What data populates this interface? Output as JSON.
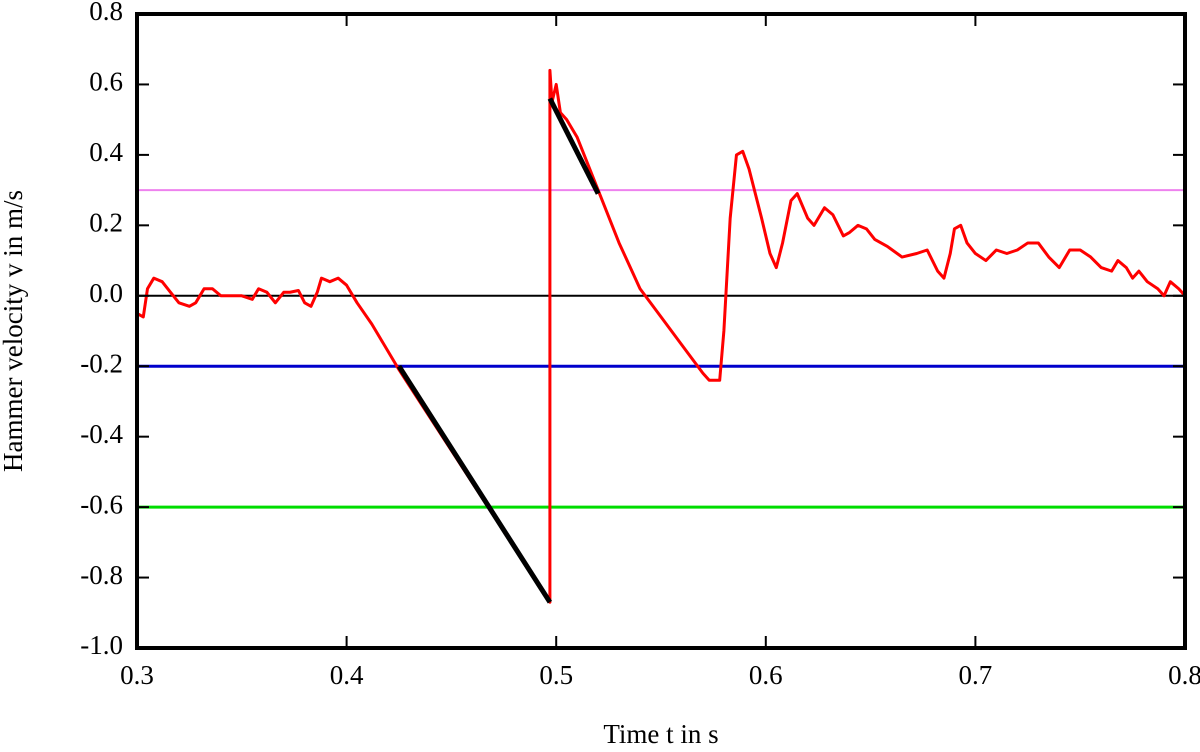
{
  "chart_data": {
    "type": "line",
    "xlabel": "Time t in s",
    "ylabel": "Hammer velocity v in m/s",
    "xlim": [
      0.3,
      0.8
    ],
    "xticks": [
      0.3,
      0.4,
      0.5,
      0.6,
      0.7,
      0.8
    ],
    "ylim": [
      -1.0,
      0.8
    ],
    "yticks": [
      {
        "value": -1.0,
        "label": "-1.0"
      },
      -0.8,
      -0.6,
      -0.4,
      -0.2,
      {
        "value": 0,
        "label": "0.0"
      },
      0.2,
      0.4,
      0.6,
      0.8
    ],
    "series": [
      {
        "color": "#ee82ee",
        "width": 2,
        "x": [
          0.3,
          0.8
        ],
        "values": [
          0.3,
          0.3
        ]
      },
      {
        "color": "#000000",
        "width": 2,
        "x": [
          0.3,
          0.8
        ],
        "values": [
          0,
          0
        ]
      },
      {
        "color": "#0000cc",
        "width": 3,
        "x": [
          0.3,
          0.8
        ],
        "values": [
          -0.2,
          -0.2
        ]
      },
      {
        "color": "#00dd00",
        "width": 3,
        "x": [
          0.3,
          0.8
        ],
        "values": [
          -0.6,
          -0.6
        ]
      },
      {
        "color": "#ff0000",
        "width": 3,
        "x": [
          0.3,
          0.303,
          0.305,
          0.308,
          0.312,
          0.316,
          0.32,
          0.325,
          0.328,
          0.332,
          0.336,
          0.34,
          0.345,
          0.35,
          0.355,
          0.358,
          0.362,
          0.366,
          0.37,
          0.373,
          0.377,
          0.38,
          0.383,
          0.386,
          0.388,
          0.392,
          0.396,
          0.4,
          0.405,
          0.412,
          0.42,
          0.425,
          0.497,
          0.497,
          0.498,
          0.5,
          0.502,
          0.505,
          0.51,
          0.52,
          0.53,
          0.54,
          0.55,
          0.56,
          0.57,
          0.573,
          0.578,
          0.58,
          0.583,
          0.586,
          0.589,
          0.592,
          0.598,
          0.602,
          0.605,
          0.608,
          0.612,
          0.615,
          0.62,
          0.623,
          0.628,
          0.632,
          0.637,
          0.64,
          0.644,
          0.648,
          0.652,
          0.658,
          0.665,
          0.672,
          0.677,
          0.682,
          0.685,
          0.688,
          0.69,
          0.693,
          0.696,
          0.7,
          0.705,
          0.71,
          0.715,
          0.72,
          0.725,
          0.73,
          0.735,
          0.74,
          0.745,
          0.75,
          0.755,
          0.76,
          0.765,
          0.768,
          0.772,
          0.775,
          0.778,
          0.782,
          0.787,
          0.79,
          0.793,
          0.797,
          0.8
        ],
        "values": [
          -0.05,
          -0.06,
          0.02,
          0.05,
          0.04,
          0.01,
          -0.02,
          -0.03,
          -0.02,
          0.02,
          0.02,
          0.0,
          0.0,
          0.0,
          -0.01,
          0.02,
          0.01,
          -0.02,
          0.01,
          0.01,
          0.015,
          -0.02,
          -0.03,
          0.01,
          0.05,
          0.04,
          0.05,
          0.03,
          -0.02,
          -0.08,
          -0.16,
          -0.21,
          -0.87,
          0.64,
          0.55,
          0.6,
          0.52,
          0.5,
          0.45,
          0.3,
          0.15,
          0.02,
          -0.06,
          -0.14,
          -0.22,
          -0.24,
          -0.24,
          -0.1,
          0.22,
          0.4,
          0.41,
          0.36,
          0.22,
          0.12,
          0.08,
          0.15,
          0.27,
          0.29,
          0.22,
          0.2,
          0.25,
          0.23,
          0.17,
          0.18,
          0.2,
          0.19,
          0.16,
          0.14,
          0.11,
          0.12,
          0.13,
          0.07,
          0.05,
          0.12,
          0.19,
          0.2,
          0.15,
          0.12,
          0.1,
          0.13,
          0.12,
          0.13,
          0.15,
          0.15,
          0.11,
          0.08,
          0.13,
          0.13,
          0.11,
          0.08,
          0.07,
          0.1,
          0.08,
          0.05,
          0.07,
          0.04,
          0.02,
          0.0,
          0.04,
          0.02,
          0.0
        ]
      },
      {
        "color": "#000000",
        "width": 5,
        "x": [
          0.425,
          0.497
        ],
        "values": [
          -0.2,
          -0.87
        ]
      },
      {
        "color": "#000000",
        "width": 5,
        "x": [
          0.497,
          0.52
        ],
        "values": [
          0.56,
          0.29
        ]
      }
    ]
  }
}
